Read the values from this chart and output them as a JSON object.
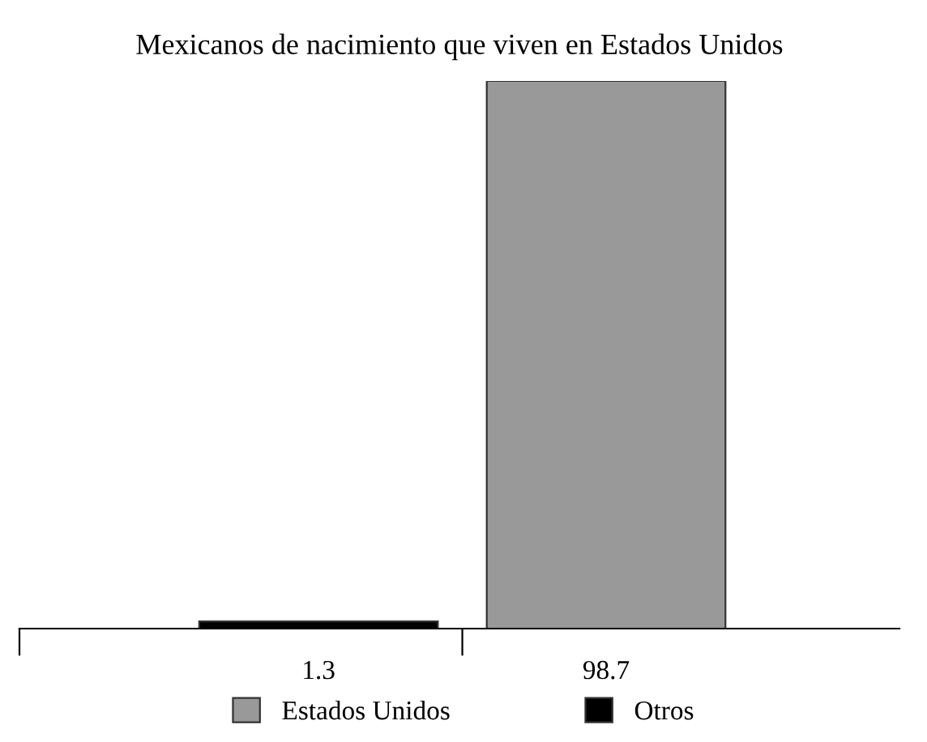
{
  "chart_data": {
    "type": "bar",
    "title": "Mexicanos de nacimiento que viven en Estados Unidos",
    "categories": [
      null,
      null
    ],
    "series": [
      {
        "name": "Estados Unidos",
        "color": "#999999",
        "values": [
          null,
          98.7
        ]
      },
      {
        "name": "Otros",
        "color": "#000000",
        "values": [
          1.3,
          null
        ]
      }
    ],
    "stacked": true,
    "data_labels": true,
    "legend": "bottom",
    "grid": false
  }
}
